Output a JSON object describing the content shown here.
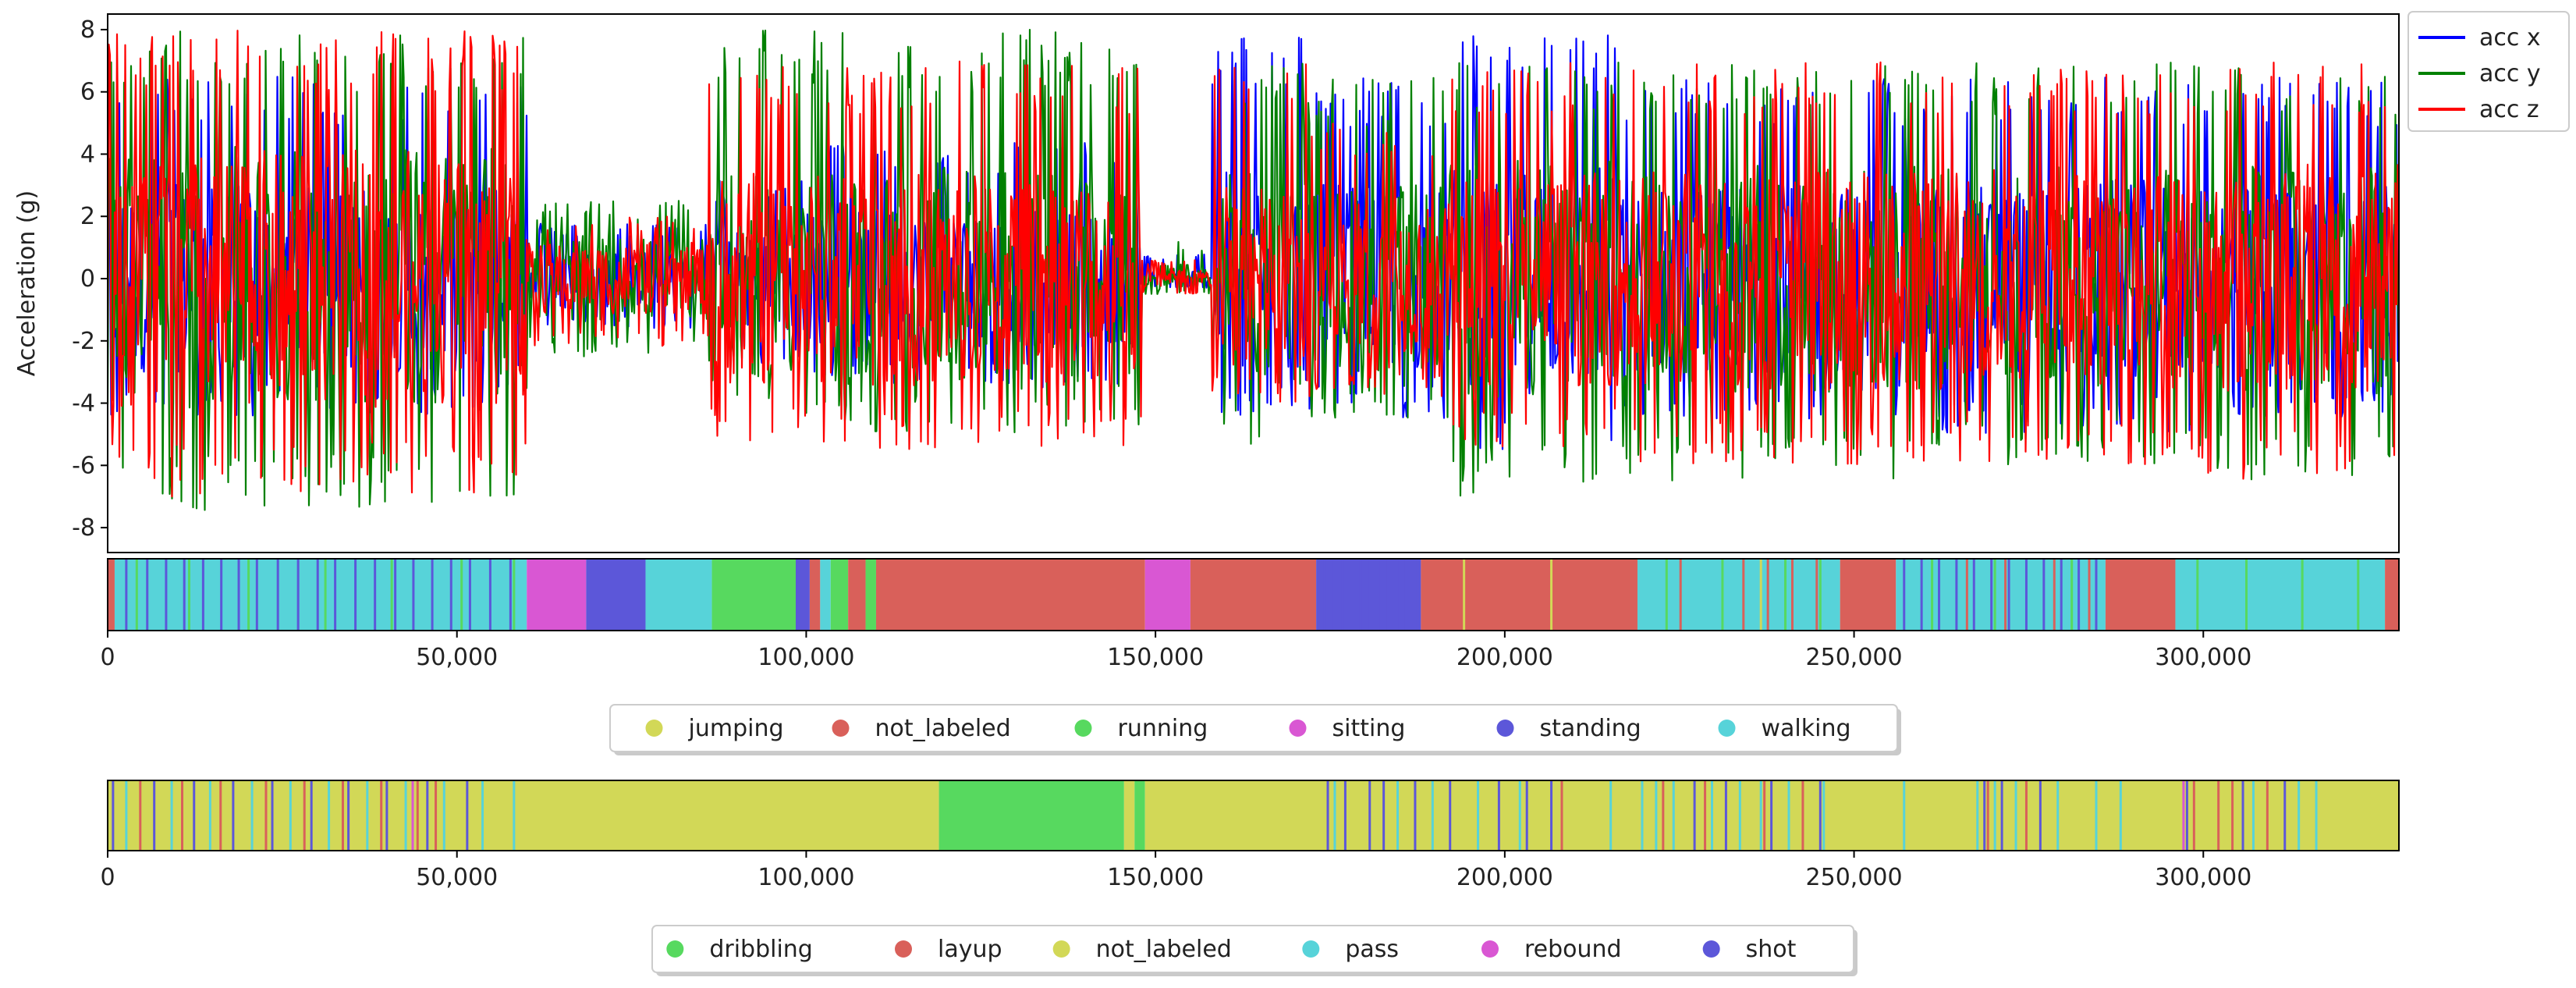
{
  "chart_data": [
    {
      "type": "line",
      "ylabel": "Acceleration (g)",
      "xlim": [
        0,
        328000
      ],
      "ylim": [
        -8.8,
        8.5
      ],
      "yticks": [
        -8,
        -6,
        -4,
        -2,
        0,
        2,
        4,
        6,
        8
      ],
      "legend_position": "top-right, outside plot",
      "series": [
        {
          "name": "acc x",
          "color": "#0000ff",
          "segments": [
            [
              0,
              60000,
              6.5,
              -4.5
            ],
            [
              60000,
              86000,
              1.8,
              -1.6
            ],
            [
              86000,
              100000,
              3.2,
              -2.8
            ],
            [
              100000,
              148000,
              4.5,
              -3.5
            ],
            [
              148000,
              158000,
              0.8,
              -0.3
            ],
            [
              158000,
              172000,
              8.0,
              -4.5
            ],
            [
              172000,
              192000,
              6.5,
              -4.5
            ],
            [
              192000,
              216000,
              8.0,
              -5.5
            ],
            [
              216000,
              260000,
              6.5,
              -4.5
            ],
            [
              260000,
              300000,
              6.5,
              -5.0
            ],
            [
              300000,
              328000,
              6.5,
              -4.5
            ]
          ]
        },
        {
          "name": "acc y",
          "color": "#008000",
          "segments": [
            [
              0,
              60000,
              8.0,
              -7.5
            ],
            [
              60000,
              86000,
              2.5,
              -2.5
            ],
            [
              86000,
              100000,
              8.0,
              -4.0
            ],
            [
              100000,
              148000,
              8.0,
              -5.0
            ],
            [
              148000,
              158000,
              1.2,
              -0.5
            ],
            [
              158000,
              172000,
              7.0,
              -5.5
            ],
            [
              172000,
              192000,
              6.5,
              -4.5
            ],
            [
              192000,
              216000,
              7.0,
              -7.0
            ],
            [
              216000,
              260000,
              7.0,
              -6.5
            ],
            [
              260000,
              300000,
              7.0,
              -6.0
            ],
            [
              300000,
              328000,
              7.0,
              -6.5
            ]
          ]
        },
        {
          "name": "acc z",
          "color": "#ff0000",
          "segments": [
            [
              0,
              60000,
              8.0,
              -7.0
            ],
            [
              60000,
              86000,
              2.0,
              -2.2
            ],
            [
              86000,
              100000,
              7.0,
              -5.5
            ],
            [
              100000,
              148000,
              7.0,
              -5.5
            ],
            [
              148000,
              158000,
              0.6,
              -0.5
            ],
            [
              158000,
              172000,
              7.0,
              -4.0
            ],
            [
              172000,
              192000,
              5.0,
              -3.8
            ],
            [
              192000,
              216000,
              7.0,
              -5.5
            ],
            [
              216000,
              260000,
              7.0,
              -6.0
            ],
            [
              260000,
              300000,
              7.0,
              -6.0
            ],
            [
              300000,
              328000,
              7.0,
              -6.5
            ]
          ]
        }
      ]
    },
    {
      "type": "timeline",
      "xlim": [
        0,
        328000
      ],
      "xticks": [
        0,
        50000,
        100000,
        150000,
        200000,
        250000,
        300000
      ],
      "xtick_labels": [
        "0",
        "50,000",
        "100,000",
        "150,000",
        "200,000",
        "250,000",
        "300,000"
      ],
      "legend": [
        {
          "label": "jumping",
          "color": "#d2d857"
        },
        {
          "label": "not_labeled",
          "color": "#d9605a"
        },
        {
          "label": "running",
          "color": "#57d95f"
        },
        {
          "label": "sitting",
          "color": "#d957d3"
        },
        {
          "label": "standing",
          "color": "#5c57d9"
        },
        {
          "label": "walking",
          "color": "#57d3d9"
        }
      ],
      "segments": [
        {
          "start": 0,
          "end": 1000,
          "label": "not_labeled"
        },
        {
          "start": 1000,
          "end": 60000,
          "label": "walking"
        },
        {
          "start": 60000,
          "end": 68500,
          "label": "sitting"
        },
        {
          "start": 68500,
          "end": 77000,
          "label": "standing"
        },
        {
          "start": 77000,
          "end": 86500,
          "label": "walking"
        },
        {
          "start": 86500,
          "end": 98500,
          "label": "running"
        },
        {
          "start": 98500,
          "end": 100500,
          "label": "standing"
        },
        {
          "start": 100500,
          "end": 102000,
          "label": "not_labeled"
        },
        {
          "start": 102000,
          "end": 103500,
          "label": "walking"
        },
        {
          "start": 103500,
          "end": 106000,
          "label": "running"
        },
        {
          "start": 106000,
          "end": 108500,
          "label": "not_labeled"
        },
        {
          "start": 108500,
          "end": 110000,
          "label": "running"
        },
        {
          "start": 110000,
          "end": 148500,
          "label": "not_labeled"
        },
        {
          "start": 148500,
          "end": 155000,
          "label": "sitting"
        },
        {
          "start": 155000,
          "end": 173000,
          "label": "not_labeled"
        },
        {
          "start": 173000,
          "end": 188000,
          "label": "standing"
        },
        {
          "start": 188000,
          "end": 219000,
          "label": "not_labeled"
        },
        {
          "start": 219000,
          "end": 248000,
          "label": "walking"
        },
        {
          "start": 248000,
          "end": 256000,
          "label": "not_labeled"
        },
        {
          "start": 256000,
          "end": 286000,
          "label": "walking"
        },
        {
          "start": 286000,
          "end": 296000,
          "label": "not_labeled"
        },
        {
          "start": 296000,
          "end": 326000,
          "label": "walking"
        },
        {
          "start": 326000,
          "end": 328000,
          "label": "not_labeled"
        }
      ],
      "stripes": [
        {
          "label": "standing",
          "positions": [
            2500,
            5500,
            8200,
            10800,
            13500,
            16100,
            18600,
            21200,
            24200,
            27100,
            29900,
            32400,
            35300,
            38100,
            41000,
            43600,
            46300,
            49000,
            51700,
            54600,
            57500,
            174000,
            175300,
            176600,
            177900,
            179200,
            180500,
            181800,
            183100,
            184400,
            185700,
            187000,
            257000,
            259500,
            262000,
            264500,
            267000,
            269500,
            272000,
            274500,
            277000,
            279500,
            282000,
            284500
          ]
        },
        {
          "label": "running",
          "positions": [
            4000,
            11500,
            20000,
            31000,
            40500,
            50500,
            58000,
            223000,
            231000,
            240000,
            245000,
            261000,
            270000,
            281000,
            299000,
            306000,
            314000,
            322000
          ]
        },
        {
          "label": "jumping",
          "positions": [
            194000,
            206500,
            236500
          ]
        },
        {
          "label": "not_labeled",
          "positions": [
            225000,
            234000,
            237500,
            241000,
            244500,
            266000,
            271500,
            278500,
            283500
          ]
        }
      ]
    },
    {
      "type": "timeline",
      "xlim": [
        0,
        328000
      ],
      "xticks": [
        0,
        50000,
        100000,
        150000,
        200000,
        250000,
        300000
      ],
      "xtick_labels": [
        "0",
        "50,000",
        "100,000",
        "150,000",
        "200,000",
        "250,000",
        "300,000"
      ],
      "legend": [
        {
          "label": "dribbling",
          "color": "#57d95f"
        },
        {
          "label": "layup",
          "color": "#d9605a"
        },
        {
          "label": "not_labeled",
          "color": "#d2d857"
        },
        {
          "label": "pass",
          "color": "#57d3d9"
        },
        {
          "label": "rebound",
          "color": "#d957d3"
        },
        {
          "label": "shot",
          "color": "#5c57d9"
        }
      ],
      "segments": [
        {
          "start": 0,
          "end": 119000,
          "label": "not_labeled"
        },
        {
          "start": 119000,
          "end": 145500,
          "label": "dribbling"
        },
        {
          "start": 145500,
          "end": 147000,
          "label": "not_labeled"
        },
        {
          "start": 147000,
          "end": 148500,
          "label": "dribbling"
        },
        {
          "start": 148500,
          "end": 328000,
          "label": "not_labeled"
        }
      ],
      "stripes": [
        {
          "label": "shot",
          "positions": [
            600,
            6500,
            12200,
            17800,
            23400,
            29000,
            34300,
            39800,
            45600,
            51300,
            174500,
            177000,
            180500,
            182500,
            187000,
            192000,
            199000,
            203000,
            206500,
            227000,
            231500,
            238000,
            245000,
            268500,
            271000,
            276500,
            297500,
            305500,
            311500
          ]
        },
        {
          "label": "pass",
          "positions": [
            2500,
            9000,
            14500,
            20500,
            26000,
            31500,
            37000,
            42500,
            48000,
            53500,
            58000,
            175500,
            184500,
            189500,
            196000,
            202000,
            215000,
            219500,
            221500,
            224000,
            229500,
            233500,
            236500,
            240500,
            245500,
            257000,
            267500,
            270000,
            273000,
            279000,
            284500,
            288000,
            307000,
            313500,
            316000
          ]
        },
        {
          "label": "layup",
          "positions": [
            4500,
            10500,
            16000,
            22500,
            28000,
            33500,
            39000,
            44200,
            46800,
            208000,
            222500,
            228500,
            237000,
            242500,
            269000,
            274500,
            298500,
            302000,
            304000,
            309000
          ]
        },
        {
          "label": "rebound",
          "positions": [
            43500,
            297000
          ]
        }
      ]
    }
  ]
}
